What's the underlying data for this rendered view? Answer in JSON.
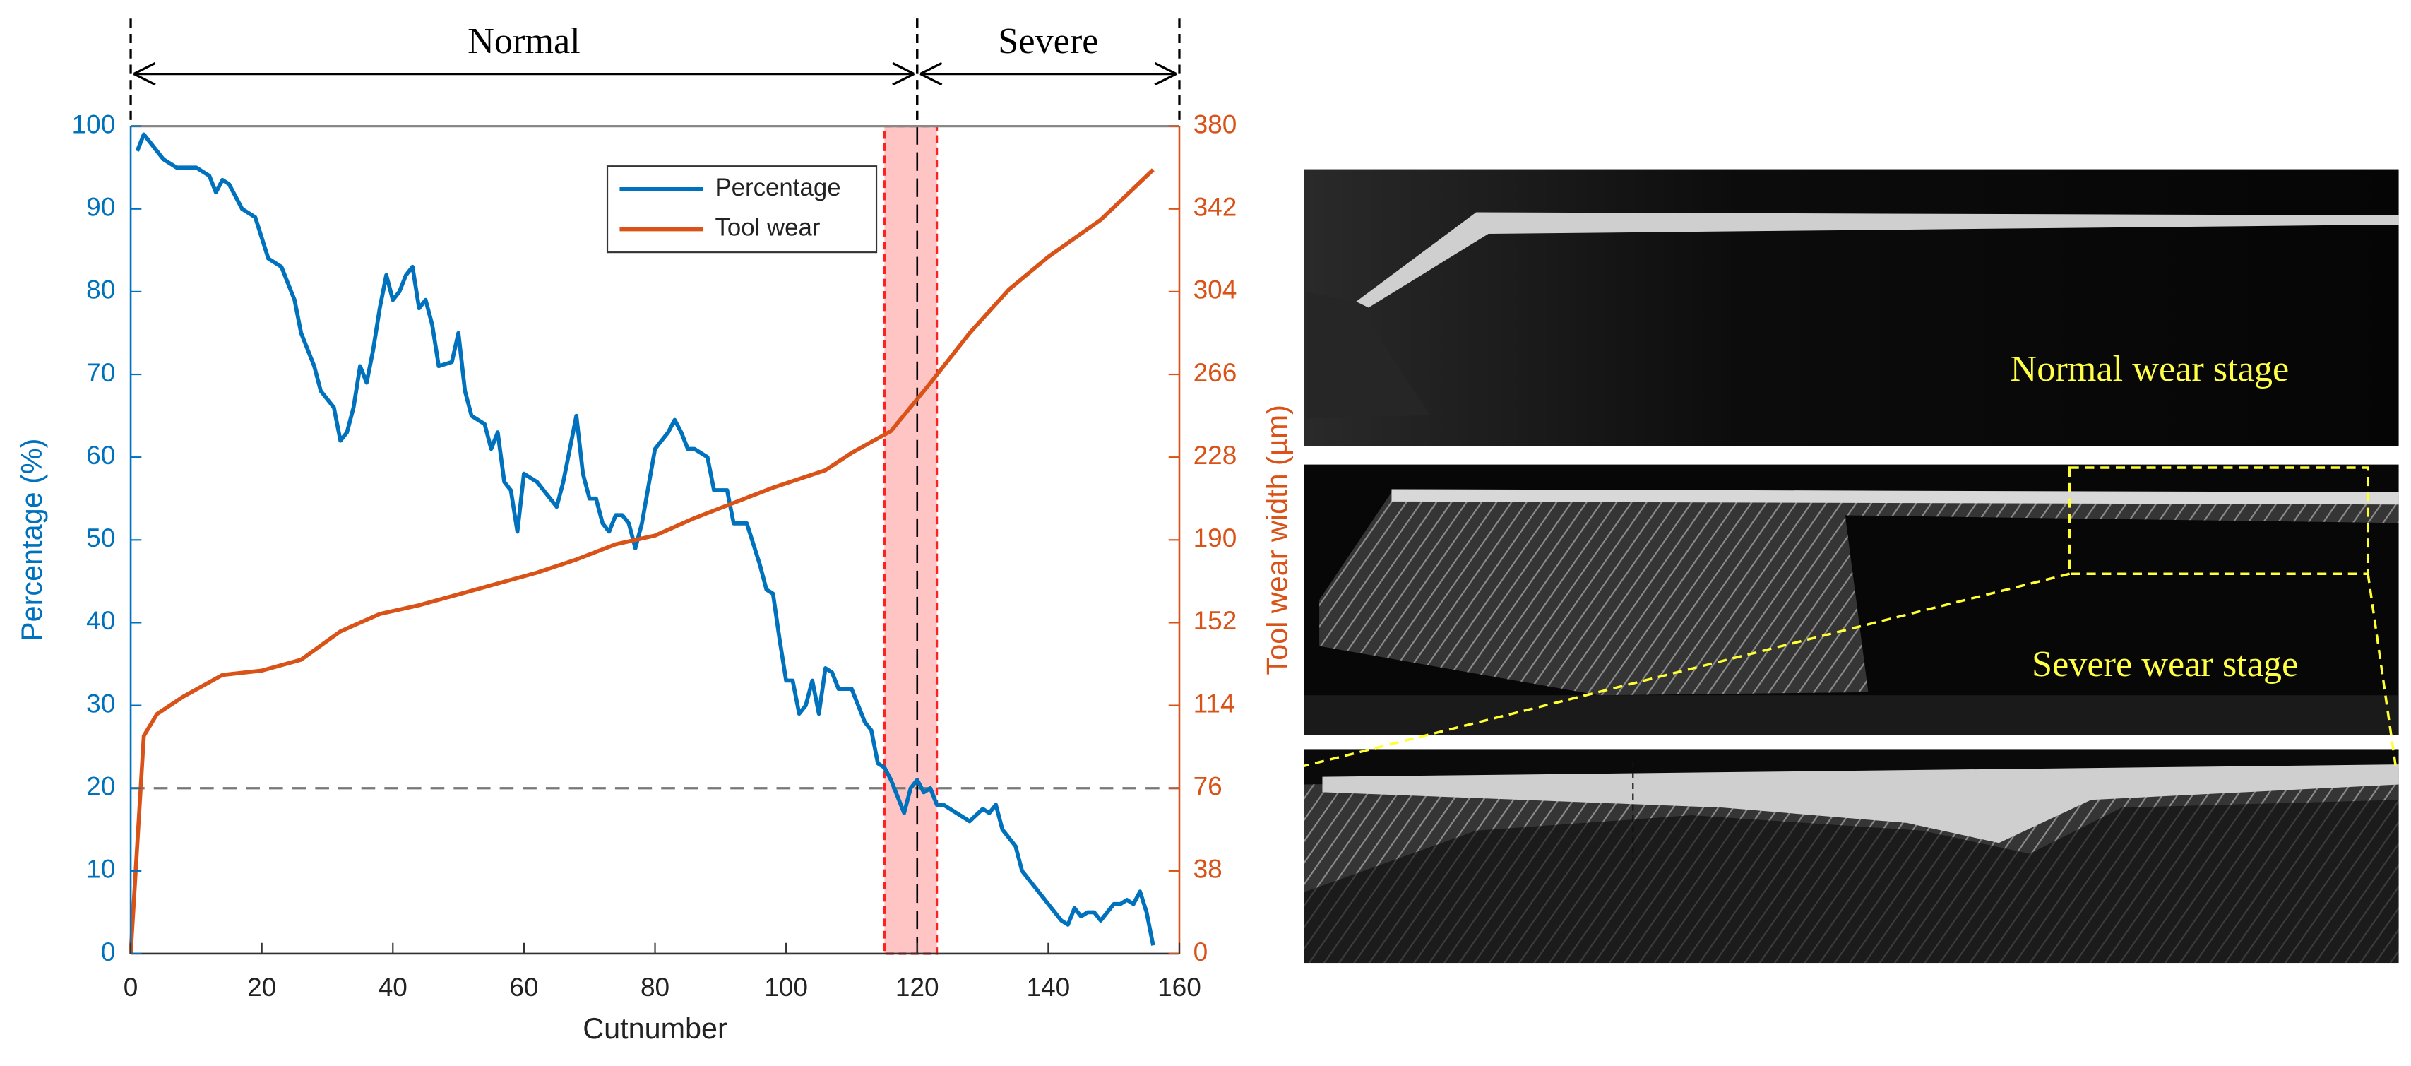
{
  "chart_data": {
    "type": "line",
    "xlabel": "Cutnumber",
    "ylabel": "Percentage (%)",
    "y2label": "Tool wear width (µm)",
    "xlim": [
      0,
      160
    ],
    "xticks": [
      0,
      20,
      40,
      60,
      80,
      100,
      120,
      140,
      160
    ],
    "ylim": [
      0,
      100
    ],
    "yticks": [
      0,
      10,
      20,
      30,
      40,
      50,
      60,
      70,
      80,
      90,
      100
    ],
    "y2lim": [
      0,
      380
    ],
    "y2ticks": [
      0,
      38,
      76,
      114,
      152,
      190,
      228,
      266,
      304,
      342,
      380
    ],
    "legend": "upper center",
    "reference_line": 20,
    "highlight_span": [
      115,
      123
    ],
    "stages": [
      {
        "label": "Normal",
        "range": [
          0,
          120
        ]
      },
      {
        "label": "Severe",
        "range": [
          120,
          160
        ]
      }
    ],
    "series": [
      {
        "name": "Percentage",
        "color": "#0072bd",
        "x": [
          1,
          2,
          3,
          5,
          7,
          10,
          12,
          13,
          14,
          15,
          17,
          19,
          21,
          23,
          25,
          26,
          28,
          29,
          31,
          32,
          33,
          34,
          35,
          36,
          37,
          38,
          39,
          40,
          41,
          42,
          43,
          44,
          45,
          46,
          47,
          49,
          50,
          51,
          52,
          54,
          55,
          56,
          57,
          58,
          59,
          60,
          62,
          64,
          65,
          66,
          68,
          69,
          70,
          71,
          72,
          73,
          74,
          75,
          76,
          77,
          78,
          80,
          82,
          83,
          84,
          85,
          86,
          88,
          89,
          91,
          92,
          94,
          96,
          97,
          98,
          99,
          100,
          101,
          102,
          103,
          104,
          105,
          106,
          107,
          108,
          110,
          112,
          113,
          114,
          115,
          116,
          117,
          118,
          119,
          120,
          121,
          122,
          123,
          124,
          126,
          128,
          130,
          131,
          132,
          133,
          135,
          136,
          138,
          140,
          142,
          143,
          144,
          145,
          146,
          147,
          148,
          149,
          150,
          151,
          152,
          153,
          154,
          155,
          156
        ],
        "values": [
          97,
          99,
          98,
          96,
          95,
          95,
          94,
          92,
          93.5,
          93,
          90,
          89,
          84,
          83,
          79,
          75,
          71,
          68,
          66,
          62,
          63,
          66,
          71,
          69,
          73,
          78,
          82,
          79,
          80,
          82,
          83,
          78,
          79,
          76,
          71,
          71.5,
          75,
          68,
          65,
          64,
          61,
          63,
          57,
          56,
          51,
          58,
          57,
          55,
          54,
          57,
          65,
          58,
          55,
          55,
          52,
          51,
          53,
          53,
          52,
          49,
          52,
          61,
          63,
          64.5,
          63,
          61,
          61,
          60,
          56,
          56,
          52,
          52,
          47,
          44,
          43.5,
          38,
          33,
          33,
          29,
          30,
          33,
          29,
          34.5,
          34,
          32,
          32,
          28,
          27,
          23,
          22.5,
          21,
          19,
          17,
          20,
          21,
          19.5,
          20,
          18,
          18,
          17,
          16,
          17.5,
          17,
          18,
          15,
          13,
          10,
          8,
          6,
          4,
          3.5,
          5.5,
          4.5,
          5,
          5,
          4,
          5,
          6,
          6,
          6.5,
          6,
          7.5,
          5,
          1
        ]
      },
      {
        "name": "Tool wear",
        "color": "#d95319",
        "axis": "y2",
        "x": [
          0,
          2,
          4,
          8,
          14,
          20,
          26,
          32,
          38,
          44,
          50,
          56,
          62,
          68,
          74,
          80,
          86,
          92,
          98,
          106,
          110,
          116,
          122,
          128,
          134,
          140,
          148,
          156
        ],
        "values": [
          0,
          100,
          110,
          118,
          128,
          130,
          135,
          148,
          156,
          160,
          165,
          170,
          175,
          181,
          188,
          192,
          200,
          207,
          214,
          222,
          230,
          240,
          262,
          285,
          305,
          320,
          337,
          360
        ]
      }
    ]
  },
  "image_captions": [
    "Normal wear stage",
    "Severe wear stage"
  ]
}
